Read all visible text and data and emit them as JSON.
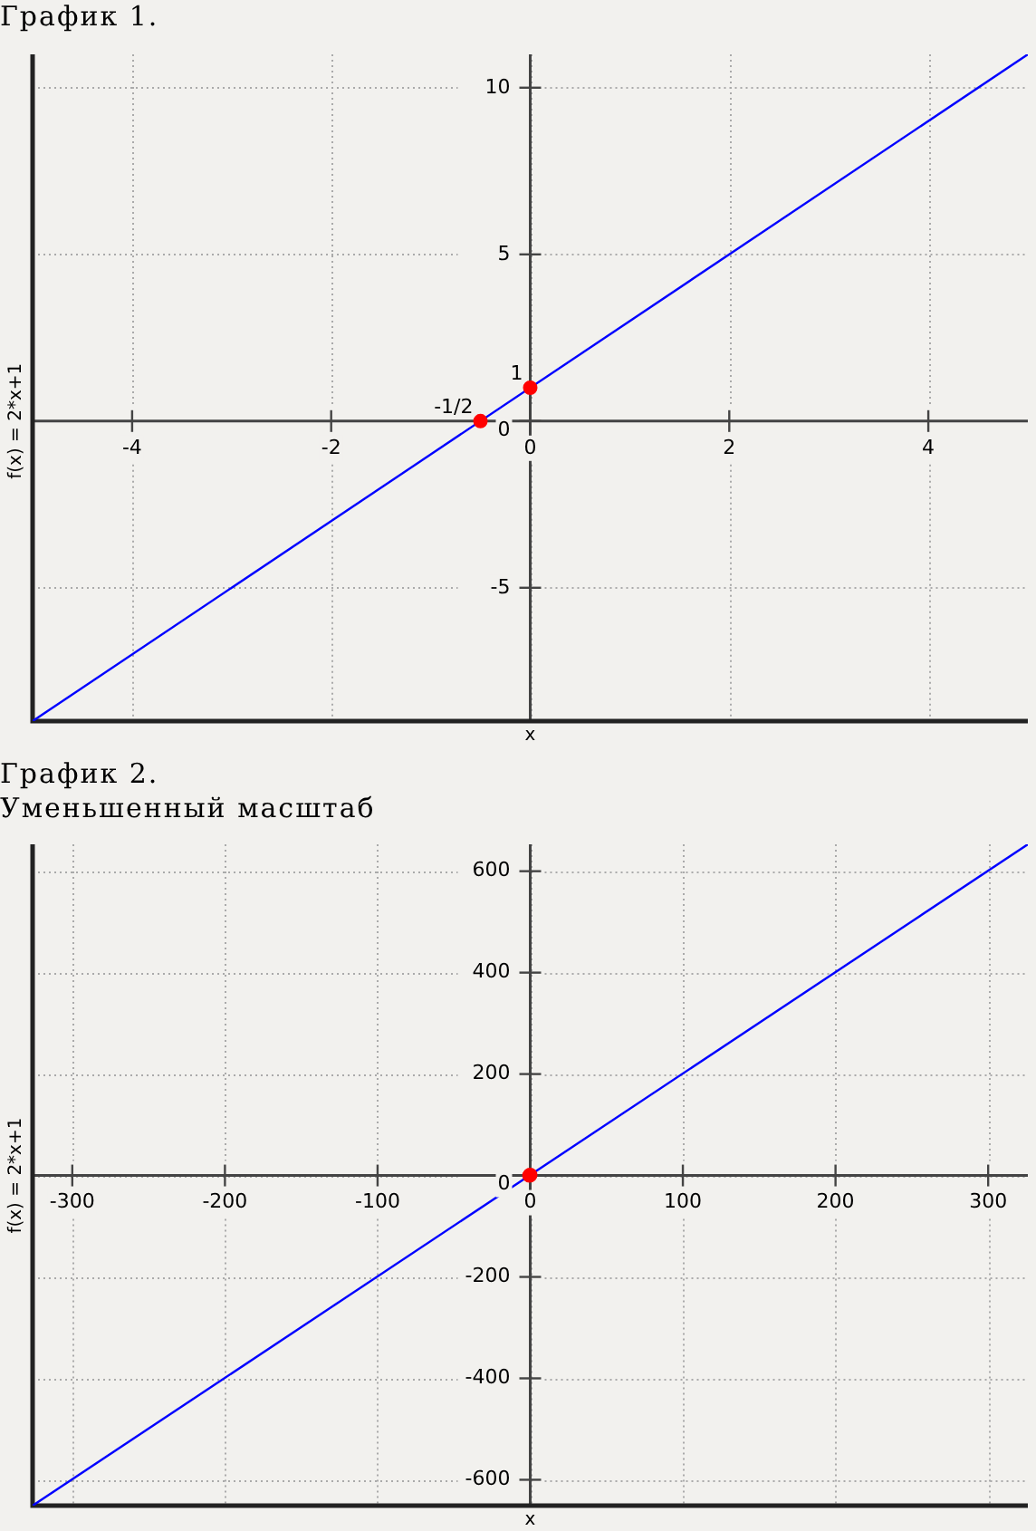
{
  "chart_data": [
    {
      "type": "line",
      "title": "График 1.",
      "xlabel": "x",
      "ylabel": "f(x) = 2*x+1",
      "xlim": [
        -5,
        5
      ],
      "ylim": [
        -9,
        11
      ],
      "xticks": [
        -4,
        -2,
        0,
        2,
        4
      ],
      "yticks": [
        -5,
        0,
        5,
        10
      ],
      "grid": true,
      "legend": false,
      "series": [
        {
          "type": "line",
          "color": "#0000ff",
          "x": [
            -5,
            5
          ],
          "values": [
            -9,
            11
          ],
          "marker": "none"
        },
        {
          "type": "scatter",
          "color": "#ff0000",
          "x": [
            -0.5,
            0
          ],
          "values": [
            0,
            1
          ],
          "marker": "circle"
        }
      ],
      "annotations": [
        {
          "text": "-1/2",
          "x": -0.5,
          "y": 0
        },
        {
          "text": "1",
          "x": 0,
          "y": 1
        }
      ]
    },
    {
      "type": "line",
      "title": "График 2.",
      "subtitle": "Уменьшенный масштаб",
      "xlabel": "x",
      "ylabel": "f(x) = 2*x+1",
      "xlim": [
        -326,
        326
      ],
      "ylim": [
        -651,
        653
      ],
      "xticks": [
        -300,
        -200,
        -100,
        0,
        100,
        200,
        300
      ],
      "yticks": [
        -600,
        -400,
        -200,
        0,
        200,
        400,
        600
      ],
      "grid": true,
      "legend": false,
      "series": [
        {
          "type": "line",
          "color": "#0000ff",
          "x": [
            -326,
            326
          ],
          "values": [
            -651,
            653
          ],
          "marker": "none"
        },
        {
          "type": "scatter",
          "color": "#ff0000",
          "x": [
            -0.5,
            0
          ],
          "values": [
            0,
            1
          ],
          "marker": "circle"
        }
      ]
    }
  ]
}
